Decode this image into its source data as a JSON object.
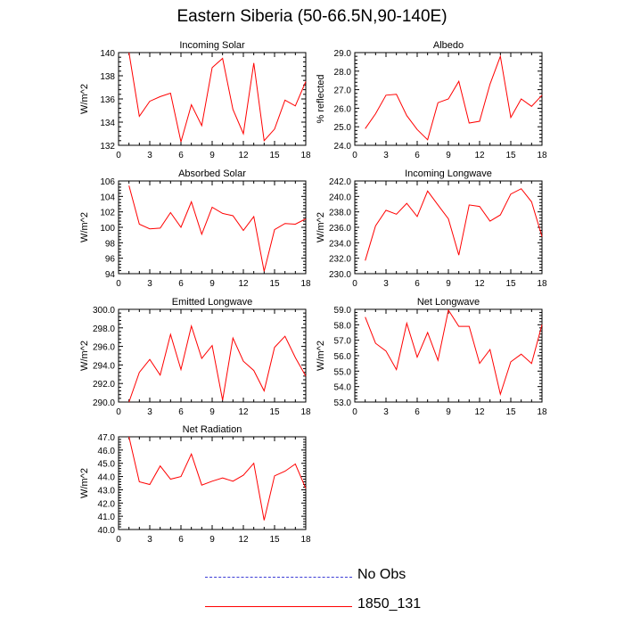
{
  "figure": {
    "title": "Eastern Siberia (50-66.5N,90-140E)"
  },
  "legend": {
    "items": [
      {
        "label": "No Obs",
        "color": "#3b3bd6",
        "style": "dashed"
      },
      {
        "label": "1850_131",
        "color": "#ff0000",
        "style": "solid"
      }
    ]
  },
  "chart_data": [
    {
      "type": "line",
      "title": "Incoming Solar",
      "ylabel": "W/m^2",
      "xlabel": "",
      "x": [
        1,
        2,
        3,
        4,
        5,
        6,
        7,
        8,
        9,
        10,
        11,
        12,
        13,
        14,
        15,
        16,
        17,
        18
      ],
      "xlim": [
        0,
        18
      ],
      "xticks": [
        "0",
        "3",
        "6",
        "9",
        "12",
        "15",
        "18"
      ],
      "ylim": [
        132,
        140
      ],
      "yticks": [
        "132",
        "134",
        "136",
        "138",
        "140"
      ],
      "series": [
        {
          "color": "#ff0000",
          "values": [
            140.0,
            134.5,
            135.8,
            136.2,
            136.5,
            132.3,
            135.5,
            133.7,
            138.7,
            139.5,
            135.1,
            133.0,
            139.1,
            132.4,
            133.4,
            135.9,
            135.4,
            137.5
          ]
        }
      ]
    },
    {
      "type": "line",
      "title": "Albedo",
      "ylabel": "% reflected",
      "xlabel": "",
      "x": [
        1,
        2,
        3,
        4,
        5,
        6,
        7,
        8,
        9,
        10,
        11,
        12,
        13,
        14,
        15,
        16,
        17,
        18
      ],
      "xlim": [
        0,
        18
      ],
      "xticks": [
        "0",
        "3",
        "6",
        "9",
        "12",
        "15",
        "18"
      ],
      "ylim": [
        24.0,
        29.0
      ],
      "yticks": [
        "24.0",
        "25.0",
        "26.0",
        "27.0",
        "28.0",
        "29.0"
      ],
      "series": [
        {
          "color": "#ff0000",
          "values": [
            24.9,
            25.7,
            26.7,
            26.75,
            25.6,
            24.85,
            24.3,
            26.3,
            26.5,
            27.45,
            25.2,
            25.3,
            27.3,
            28.8,
            25.5,
            26.5,
            26.1,
            26.7
          ]
        }
      ]
    },
    {
      "type": "line",
      "title": "Absorbed Solar",
      "ylabel": "W/m^2",
      "xlabel": "",
      "x": [
        1,
        2,
        3,
        4,
        5,
        6,
        7,
        8,
        9,
        10,
        11,
        12,
        13,
        14,
        15,
        16,
        17,
        18
      ],
      "xlim": [
        0,
        18
      ],
      "xticks": [
        "0",
        "3",
        "6",
        "9",
        "12",
        "15",
        "18"
      ],
      "ylim": [
        94,
        106
      ],
      "yticks": [
        "94",
        "96",
        "98",
        "100",
        "102",
        "104",
        "106"
      ],
      "series": [
        {
          "color": "#ff0000",
          "values": [
            105.4,
            100.4,
            99.8,
            99.9,
            101.9,
            100.0,
            103.3,
            99.1,
            102.6,
            101.8,
            101.5,
            99.6,
            101.4,
            94.3,
            99.7,
            100.5,
            100.4,
            101.1
          ]
        }
      ]
    },
    {
      "type": "line",
      "title": "Incoming Longwave",
      "ylabel": "W/m^2",
      "xlabel": "",
      "x": [
        1,
        2,
        3,
        4,
        5,
        6,
        7,
        8,
        9,
        10,
        11,
        12,
        13,
        14,
        15,
        16,
        17,
        18
      ],
      "xlim": [
        0,
        18
      ],
      "xticks": [
        "0",
        "3",
        "6",
        "9",
        "12",
        "15",
        "18"
      ],
      "ylim": [
        230.0,
        242.0
      ],
      "yticks": [
        "230.0",
        "232.0",
        "234.0",
        "236.0",
        "238.0",
        "240.0",
        "242.0"
      ],
      "series": [
        {
          "color": "#ff0000",
          "values": [
            231.7,
            236.2,
            238.2,
            237.7,
            239.1,
            237.4,
            240.7,
            238.9,
            237.1,
            232.4,
            238.9,
            238.7,
            236.8,
            237.6,
            240.3,
            241.0,
            239.3,
            234.8
          ]
        }
      ]
    },
    {
      "type": "line",
      "title": "Emitted Longwave",
      "ylabel": "W/m^2",
      "xlabel": "",
      "x": [
        1,
        2,
        3,
        4,
        5,
        6,
        7,
        8,
        9,
        10,
        11,
        12,
        13,
        14,
        15,
        16,
        17,
        18
      ],
      "xlim": [
        0,
        18
      ],
      "xticks": [
        "0",
        "3",
        "6",
        "9",
        "12",
        "15",
        "18"
      ],
      "ylim": [
        290.0,
        300.0
      ],
      "yticks": [
        "290.0",
        "292.0",
        "294.0",
        "296.0",
        "298.0",
        "300.0"
      ],
      "series": [
        {
          "color": "#ff0000",
          "values": [
            290.0,
            293.2,
            294.6,
            292.9,
            297.3,
            293.5,
            298.2,
            294.7,
            296.1,
            290.2,
            296.9,
            294.4,
            293.4,
            291.2,
            295.9,
            297.1,
            294.8,
            292.8
          ]
        }
      ]
    },
    {
      "type": "line",
      "title": "Net Longwave",
      "ylabel": "W/m^2",
      "xlabel": "",
      "x": [
        1,
        2,
        3,
        4,
        5,
        6,
        7,
        8,
        9,
        10,
        11,
        12,
        13,
        14,
        15,
        16,
        17,
        18
      ],
      "xlim": [
        0,
        18
      ],
      "xticks": [
        "0",
        "3",
        "6",
        "9",
        "12",
        "15",
        "18"
      ],
      "ylim": [
        53.0,
        59.0
      ],
      "yticks": [
        "53.0",
        "54.0",
        "55.0",
        "56.0",
        "57.0",
        "58.0",
        "59.0"
      ],
      "series": [
        {
          "color": "#ff0000",
          "values": [
            58.5,
            56.8,
            56.3,
            55.1,
            58.1,
            55.9,
            57.5,
            55.7,
            58.95,
            57.9,
            57.9,
            55.5,
            56.4,
            53.5,
            55.6,
            56.1,
            55.5,
            58.0
          ]
        }
      ]
    },
    {
      "type": "line",
      "title": "Net Radiation",
      "ylabel": "W/m^2",
      "xlabel": "",
      "x": [
        1,
        2,
        3,
        4,
        5,
        6,
        7,
        8,
        9,
        10,
        11,
        12,
        13,
        14,
        15,
        16,
        17,
        18
      ],
      "xlim": [
        0,
        18
      ],
      "xticks": [
        "0",
        "3",
        "6",
        "9",
        "12",
        "15",
        "18"
      ],
      "ylim": [
        40.0,
        47.0
      ],
      "yticks": [
        "40.0",
        "41.0",
        "42.0",
        "43.0",
        "44.0",
        "45.0",
        "46.0",
        "47.0"
      ],
      "series": [
        {
          "color": "#ff0000",
          "values": [
            47.0,
            43.6,
            43.4,
            44.8,
            43.8,
            44.0,
            45.7,
            43.35,
            43.65,
            43.9,
            43.65,
            44.1,
            45.0,
            40.7,
            44.05,
            44.4,
            44.95,
            43.1
          ]
        }
      ]
    }
  ]
}
